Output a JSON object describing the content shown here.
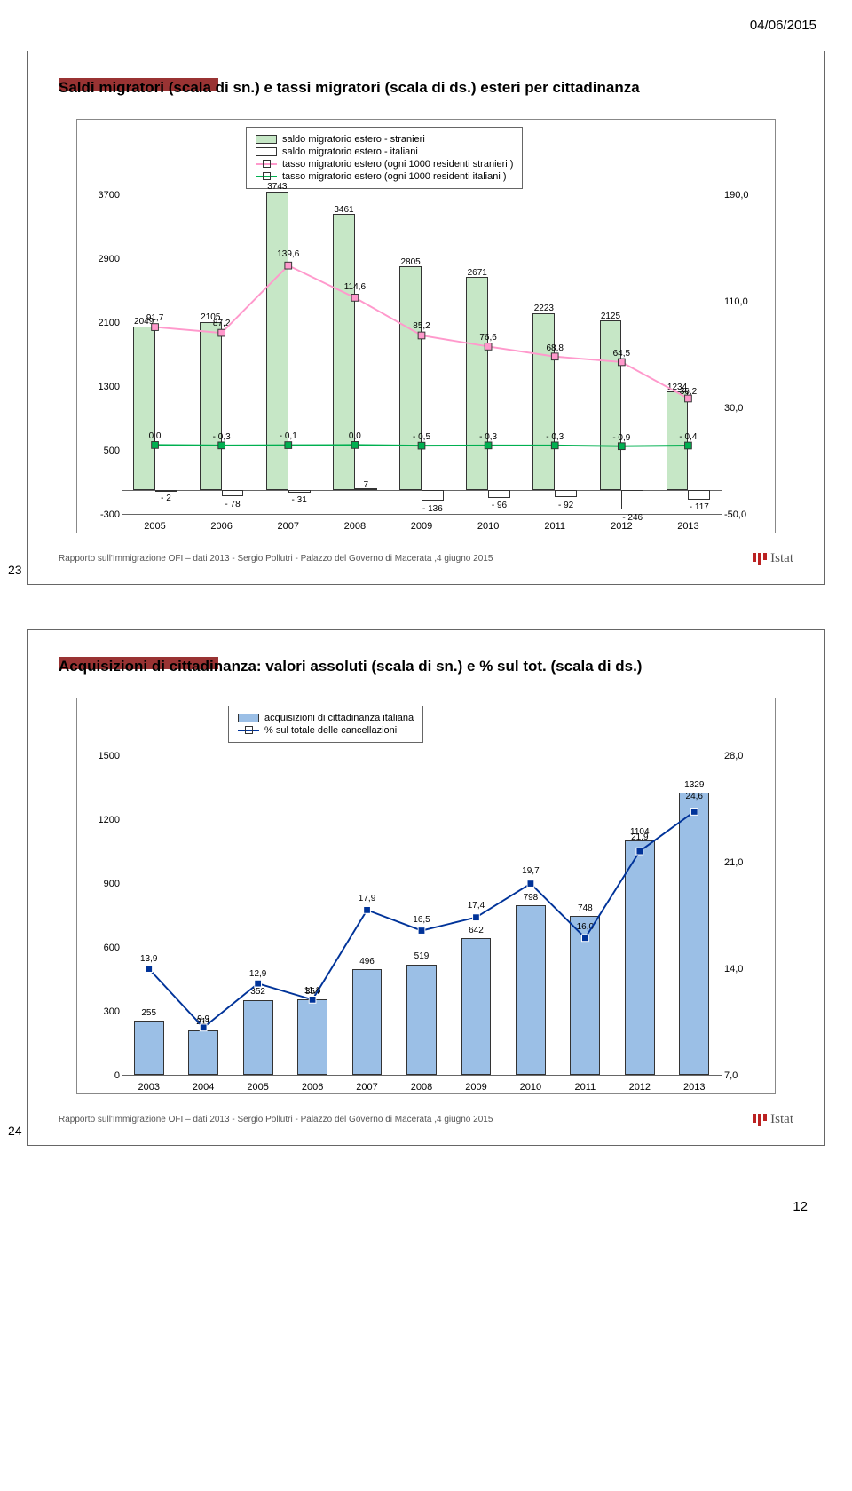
{
  "header_date": "04/06/2015",
  "page_number": "12",
  "footer_text": "Rapporto sull'Immigrazione OFI – dati 2013 - Sergio Pollutri - Palazzo del Governo di Macerata ,4 giugno 2015",
  "istat_label": "Istat",
  "slide1": {
    "num": "23",
    "title": "Saldi migratori (scala di sn.) e tassi migratori (scala di ds.) esteri per cittadinanza",
    "legend": [
      "saldo migratorio estero - stranieri",
      "saldo migratorio estero - italiani",
      "tasso migratorio estero (ogni 1000 residenti stranieri )",
      "tasso migratorio estero (ogni 1000 residenti italiani )"
    ],
    "colors": {
      "bar_stranieri": "#c6e7c6",
      "bar_italiani": "#ffffff",
      "line_stranieri": "#ff99cc",
      "line_italiani": "#00b050",
      "border": "#333333"
    },
    "x": [
      "2005",
      "2006",
      "2007",
      "2008",
      "2009",
      "2010",
      "2011",
      "2012",
      "2013"
    ],
    "y_left": {
      "min": -300,
      "max": 3700,
      "step": 800
    },
    "y_right": {
      "min": -50.0,
      "max": 190.0,
      "step": 80.0
    },
    "bars_stranieri": [
      2049,
      2105,
      3743,
      3461,
      2805,
      2671,
      2223,
      2125,
      1234
    ],
    "bars_stranieri_labels": [
      "2049",
      "2105",
      "3743",
      "3461",
      "2805",
      "2671",
      "2223",
      "2125",
      "1234"
    ],
    "bars_italiani": [
      -2,
      -78,
      -31,
      7,
      -136,
      -96,
      -92,
      -246,
      -117
    ],
    "bars_italiani_labels": [
      "- 2",
      "- 78",
      "- 31",
      "7",
      "- 136",
      "- 96",
      "- 92",
      "- 246",
      "- 117"
    ],
    "line_stranieri": [
      91.7,
      87.2,
      139.6,
      114.6,
      85.2,
      76.6,
      68.8,
      64.5,
      36.2
    ],
    "line_stranieri_labels": [
      "91,7",
      "87,2",
      "139,6",
      "114,6",
      "85,2",
      "76,6",
      "68,8",
      "64,5",
      "36,2"
    ],
    "line_italiani": [
      0.0,
      -0.3,
      -0.1,
      0.0,
      -0.5,
      -0.3,
      -0.3,
      -0.9,
      -0.4
    ],
    "line_italiani_labels": [
      "0,0",
      "- 0,3",
      "- 0,1",
      "0,0",
      "- 0,5",
      "- 0,3",
      "- 0,3",
      "- 0,9",
      "- 0,4"
    ]
  },
  "slide2": {
    "num": "24",
    "title": "Acquisizioni di cittadinanza: valori assoluti (scala di sn.) e % sul tot. (scala di ds.)",
    "legend": [
      "acquisizioni di cittadinanza italiana",
      "% sul totale delle cancellazioni"
    ],
    "colors": {
      "bar": "#9bbfe6",
      "line": "#003399",
      "border": "#333333"
    },
    "x": [
      "2003",
      "2004",
      "2005",
      "2006",
      "2007",
      "2008",
      "2009",
      "2010",
      "2011",
      "2012",
      "2013"
    ],
    "y_left": {
      "min": 0,
      "max": 1500,
      "step": 300
    },
    "y_right": {
      "min": 7.0,
      "max": 28.0,
      "step": 7.0
    },
    "bars": [
      255,
      211,
      352,
      354,
      496,
      519,
      642,
      798,
      748,
      1104,
      1329
    ],
    "bars_labels": [
      "255",
      "211",
      "352",
      "354",
      "496",
      "519",
      "642",
      "798",
      "748",
      "1104",
      "1329"
    ],
    "line": [
      13.9,
      9.9,
      12.9,
      11.8,
      17.9,
      16.5,
      17.4,
      19.7,
      16.0,
      21.9,
      24.6
    ],
    "line_labels": [
      "13,9",
      "9,9",
      "12,9",
      "11,8",
      "17,9",
      "16,5",
      "17,4",
      "19,7",
      "16,0",
      "21,9",
      "24,6"
    ]
  }
}
